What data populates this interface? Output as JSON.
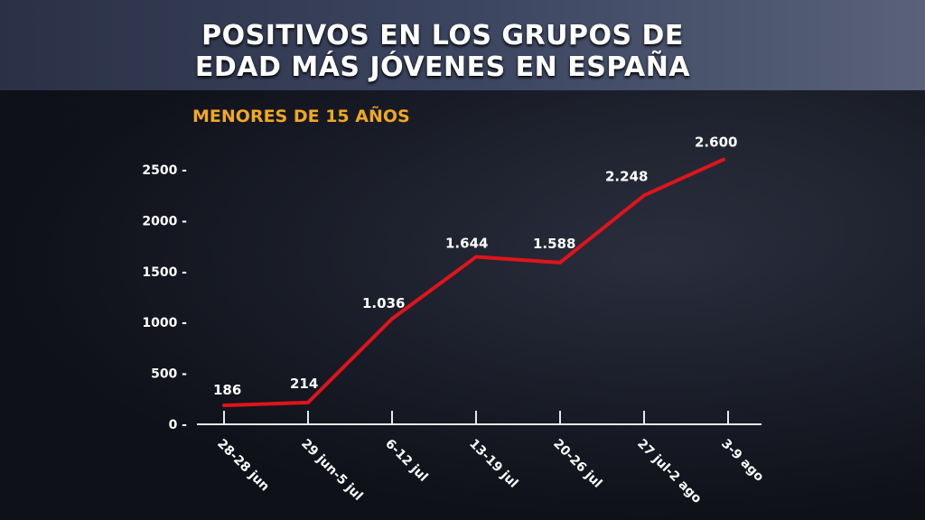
{
  "header": {
    "title_line1": "POSITIVOS EN LOS GRUPOS DE",
    "title_line2": "EDAD MÁS JÓVENES EN ESPAÑA"
  },
  "chart_data": {
    "type": "line",
    "title": "POSITIVOS EN LOS GRUPOS DE EDAD MÁS JÓVENES EN ESPAÑA",
    "subtitle": "MENORES DE 15 AÑOS",
    "categories": [
      "28-28 jun",
      "29 jun-5 jul",
      "6-12 jul",
      "13-19 jul",
      "20-26 jul",
      "27 jul-2 ago",
      "3-9 ago"
    ],
    "values": [
      186,
      214,
      1036,
      1644,
      1588,
      2248,
      2600
    ],
    "data_labels": [
      "186",
      "214",
      "1.036",
      "1.644",
      "1.588",
      "2.248",
      "2.600"
    ],
    "yticks": [
      0,
      500,
      1000,
      1500,
      2000,
      2500
    ],
    "ylim": [
      0,
      2600
    ],
    "grid": false,
    "line_color": "#e0141a",
    "subtitle_color": "#f0a823"
  }
}
